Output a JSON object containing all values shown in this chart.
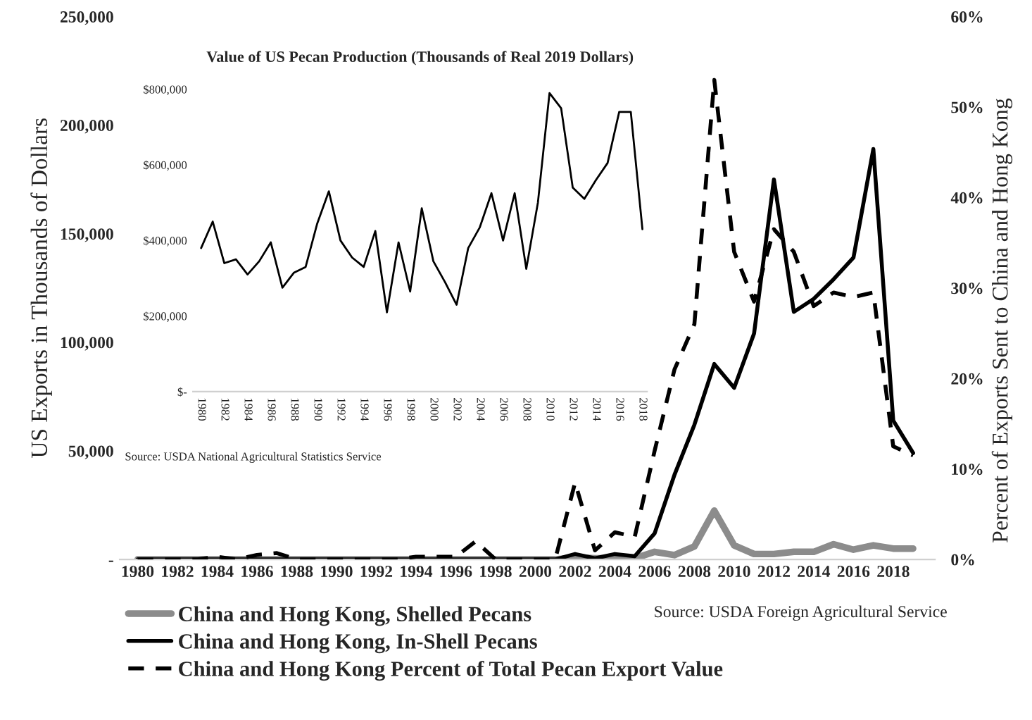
{
  "chart_data": [
    {
      "type": "line",
      "xlabel": null,
      "ylabel": "US Exports in Thousands of Dollars",
      "y2label": "Percent of Exports Sent to China and Hong Kong",
      "x": [
        1980,
        1981,
        1982,
        1983,
        1984,
        1985,
        1986,
        1987,
        1988,
        1989,
        1990,
        1991,
        1992,
        1993,
        1994,
        1995,
        1996,
        1997,
        1998,
        1999,
        2000,
        2001,
        2002,
        2003,
        2004,
        2005,
        2006,
        2007,
        2008,
        2009,
        2010,
        2011,
        2012,
        2013,
        2014,
        2015,
        2016,
        2017,
        2018,
        2019
      ],
      "series": [
        {
          "name": "China and Hong Kong, Shelled Pecans",
          "color": "#8c8c8c",
          "line_style": "solid",
          "values": [
            0,
            0,
            0,
            0,
            0,
            0,
            0,
            0,
            0,
            0,
            0,
            0,
            0,
            0,
            0,
            0,
            0,
            0,
            0,
            0,
            0,
            0,
            1000,
            500,
            500,
            500,
            3500,
            2000,
            6000,
            22500,
            6500,
            2500,
            2500,
            3500,
            3500,
            7000,
            4500,
            6500,
            5000,
            5000
          ]
        },
        {
          "name": "China and Hong Kong, In-Shell Pecans",
          "color": "#000000",
          "line_style": "solid",
          "values": [
            0,
            0,
            0,
            0,
            0,
            0,
            0,
            0,
            0,
            0,
            0,
            0,
            0,
            0,
            0,
            0,
            0,
            0,
            0,
            0,
            0,
            0,
            2500,
            500,
            2500,
            1500,
            12000,
            39000,
            62000,
            90000,
            79000,
            104000,
            175000,
            114000,
            120000,
            129000,
            139000,
            189000,
            64000,
            49000
          ]
        },
        {
          "name": "China and Hong Kong Percent of Total Pecan Export Value",
          "color": "#000000",
          "line_style": "dashed",
          "axis": "y2",
          "values": [
            0,
            0,
            0,
            0,
            0.3,
            0,
            0.5,
            0.7,
            0,
            0,
            0,
            0,
            0,
            0,
            0.3,
            0.3,
            0.3,
            2,
            0,
            0,
            0,
            0,
            8.5,
            1,
            3,
            2.5,
            12,
            21,
            26,
            53,
            34,
            28.5,
            36.5,
            34,
            28,
            29.5,
            29,
            29.5,
            12.5,
            11.5
          ]
        }
      ],
      "xlim": [
        1979.1,
        2020.1
      ],
      "xticks": [
        1980,
        1982,
        1984,
        1986,
        1988,
        1990,
        1992,
        1994,
        1996,
        1998,
        2000,
        2002,
        2004,
        2006,
        2008,
        2010,
        2012,
        2014,
        2016,
        2018
      ],
      "ylim": [
        0,
        250000
      ],
      "yticks": [
        {
          "value": 0,
          "label": "-"
        },
        {
          "value": 50000,
          "label": "50,000"
        },
        {
          "value": 100000,
          "label": "100,000"
        },
        {
          "value": 150000,
          "label": "150,000"
        },
        {
          "value": 200000,
          "label": "200,000"
        },
        {
          "value": 250000,
          "label": "250,000"
        }
      ],
      "y2lim": [
        0,
        60
      ],
      "y2ticks": [
        {
          "value": 0,
          "label": "0%"
        },
        {
          "value": 10,
          "label": "10%"
        },
        {
          "value": 20,
          "label": "20%"
        },
        {
          "value": 30,
          "label": "30%"
        },
        {
          "value": 40,
          "label": "40%"
        },
        {
          "value": 50,
          "label": "50%"
        },
        {
          "value": 60,
          "label": "60%"
        }
      ],
      "grid": false,
      "legend": "bottom",
      "annotations": [
        "Source: USDA Foreign Agricultural Service"
      ]
    },
    {
      "type": "line",
      "title": "Value of US Pecan Production (Thousands of Real 2019 Dollars)",
      "x": [
        1980,
        1981,
        1982,
        1983,
        1984,
        1985,
        1986,
        1987,
        1988,
        1989,
        1990,
        1991,
        1992,
        1993,
        1994,
        1995,
        1996,
        1997,
        1998,
        1999,
        2000,
        2001,
        2002,
        2003,
        2004,
        2005,
        2006,
        2007,
        2008,
        2009,
        2010,
        2011,
        2012,
        2013,
        2014,
        2015,
        2016,
        2017,
        2018
      ],
      "series": [
        {
          "color": "#000000",
          "values": [
            380000,
            450000,
            340000,
            350000,
            310000,
            345000,
            395000,
            275000,
            315000,
            330000,
            445000,
            530000,
            400000,
            355000,
            330000,
            425000,
            210000,
            395000,
            265000,
            485000,
            345000,
            290000,
            230000,
            380000,
            435000,
            525000,
            400000,
            525000,
            325000,
            500000,
            790000,
            750000,
            540000,
            510000,
            560000,
            605000,
            740000,
            740000,
            430000
          ]
        }
      ],
      "xlim": [
        1979.3,
        2018.4
      ],
      "xticks": [
        1980,
        1982,
        1984,
        1986,
        1988,
        1990,
        1992,
        1994,
        1996,
        1998,
        2000,
        2002,
        2004,
        2006,
        2008,
        2010,
        2012,
        2014,
        2016,
        2018
      ],
      "ylim": [
        0,
        800000
      ],
      "yticks": [
        {
          "value": 0,
          "label": "$-"
        },
        {
          "value": 200000,
          "label": "$200,000"
        },
        {
          "value": 400000,
          "label": "$400,000"
        },
        {
          "value": 600000,
          "label": "$600,000"
        },
        {
          "value": 800000,
          "label": "$800,000"
        }
      ],
      "grid": false,
      "annotations": [
        "Source: USDA National Agricultural Statistics Service"
      ]
    }
  ]
}
